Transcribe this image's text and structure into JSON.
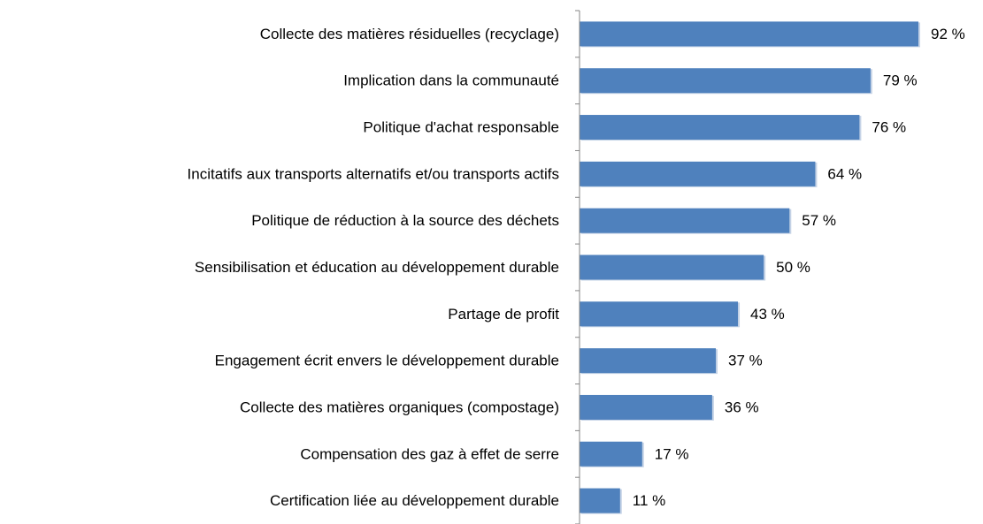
{
  "chart_data": {
    "type": "barh",
    "categories": [
      "Collecte des matières résiduelles (recyclage)",
      "Implication dans la communauté ",
      "Politique d'achat responsable",
      "Incitatifs aux transports alternatifs et/ou transports actifs",
      "Politique de réduction à la source des déchets",
      "Sensibilisation et éducation au développement durable",
      "Partage de profit",
      "Engagement écrit envers le développement durable",
      "Collecte des matières organiques (compostage)",
      "Compensation des gaz à effet de serre",
      "Certification liée au développement durable"
    ],
    "values": [
      92,
      79,
      76,
      64,
      57,
      50,
      43,
      37,
      36,
      17,
      11
    ],
    "value_labels": [
      "92 %",
      "79 %",
      "76 %",
      "64 %",
      "57 %",
      "50 %",
      "43 %",
      "37 %",
      "36 %",
      "17 %",
      "11 %"
    ],
    "color": "#4f81bd"
  }
}
